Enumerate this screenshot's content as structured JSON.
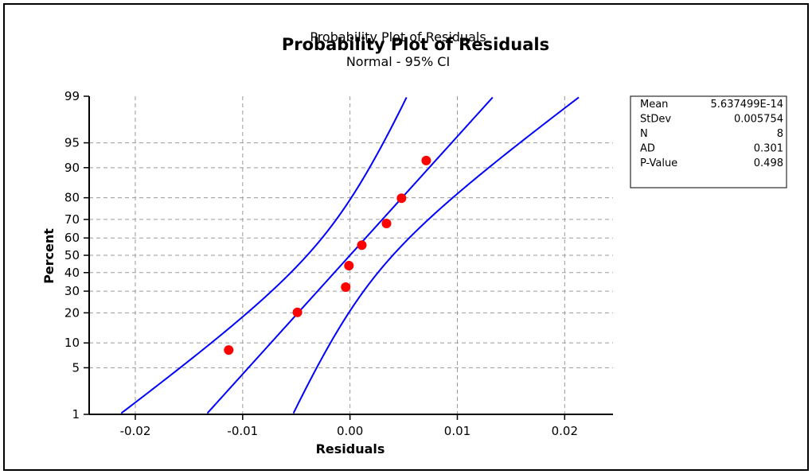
{
  "chart_data": {
    "type": "scatter",
    "title": "Probability Plot of Residuals",
    "subtitle": "Normal - 95% CI",
    "xlabel": "Residuals",
    "ylabel": "Percent",
    "xlim": [
      -0.0243,
      0.0245
    ],
    "x_ticks": [
      -0.02,
      -0.01,
      0,
      0.01,
      0.02
    ],
    "x_tick_labels": [
      "-0.02",
      "-0.01",
      "0.00",
      "0.01",
      "0.02"
    ],
    "y_scale": "normal-probability",
    "ylim": [
      1,
      99
    ],
    "y_ticks": [
      1,
      5,
      10,
      20,
      30,
      40,
      50,
      60,
      70,
      80,
      90,
      95,
      99
    ],
    "y_tick_labels": [
      "1",
      "5",
      "10",
      "20",
      "30",
      "40",
      "50",
      "60",
      "70",
      "80",
      "90",
      "95",
      "99"
    ],
    "grid": true,
    "points": {
      "x": [
        -0.0113,
        -0.0049,
        -0.0004,
        -0.0001,
        0.0011,
        0.0034,
        0.0048,
        0.0071
      ],
      "y": [
        8.3,
        20.2,
        32.1,
        44.0,
        55.9,
        67.9,
        79.8,
        91.7
      ],
      "color": "#ff0000"
    },
    "fit_line": {
      "mean": 5.637499e-14,
      "stdev": 0.005754,
      "color": "#0000ff"
    },
    "ci_level": 0.95,
    "ci_color": "#0000ff",
    "stats_box": {
      "placement": "right",
      "rows": [
        {
          "label": "Mean",
          "value": "5.637499E-14"
        },
        {
          "label": "StDev",
          "value": "0.005754"
        },
        {
          "label": "N",
          "value": "8"
        },
        {
          "label": "AD",
          "value": "0.301"
        },
        {
          "label": "P-Value",
          "value": "0.498"
        }
      ]
    }
  }
}
